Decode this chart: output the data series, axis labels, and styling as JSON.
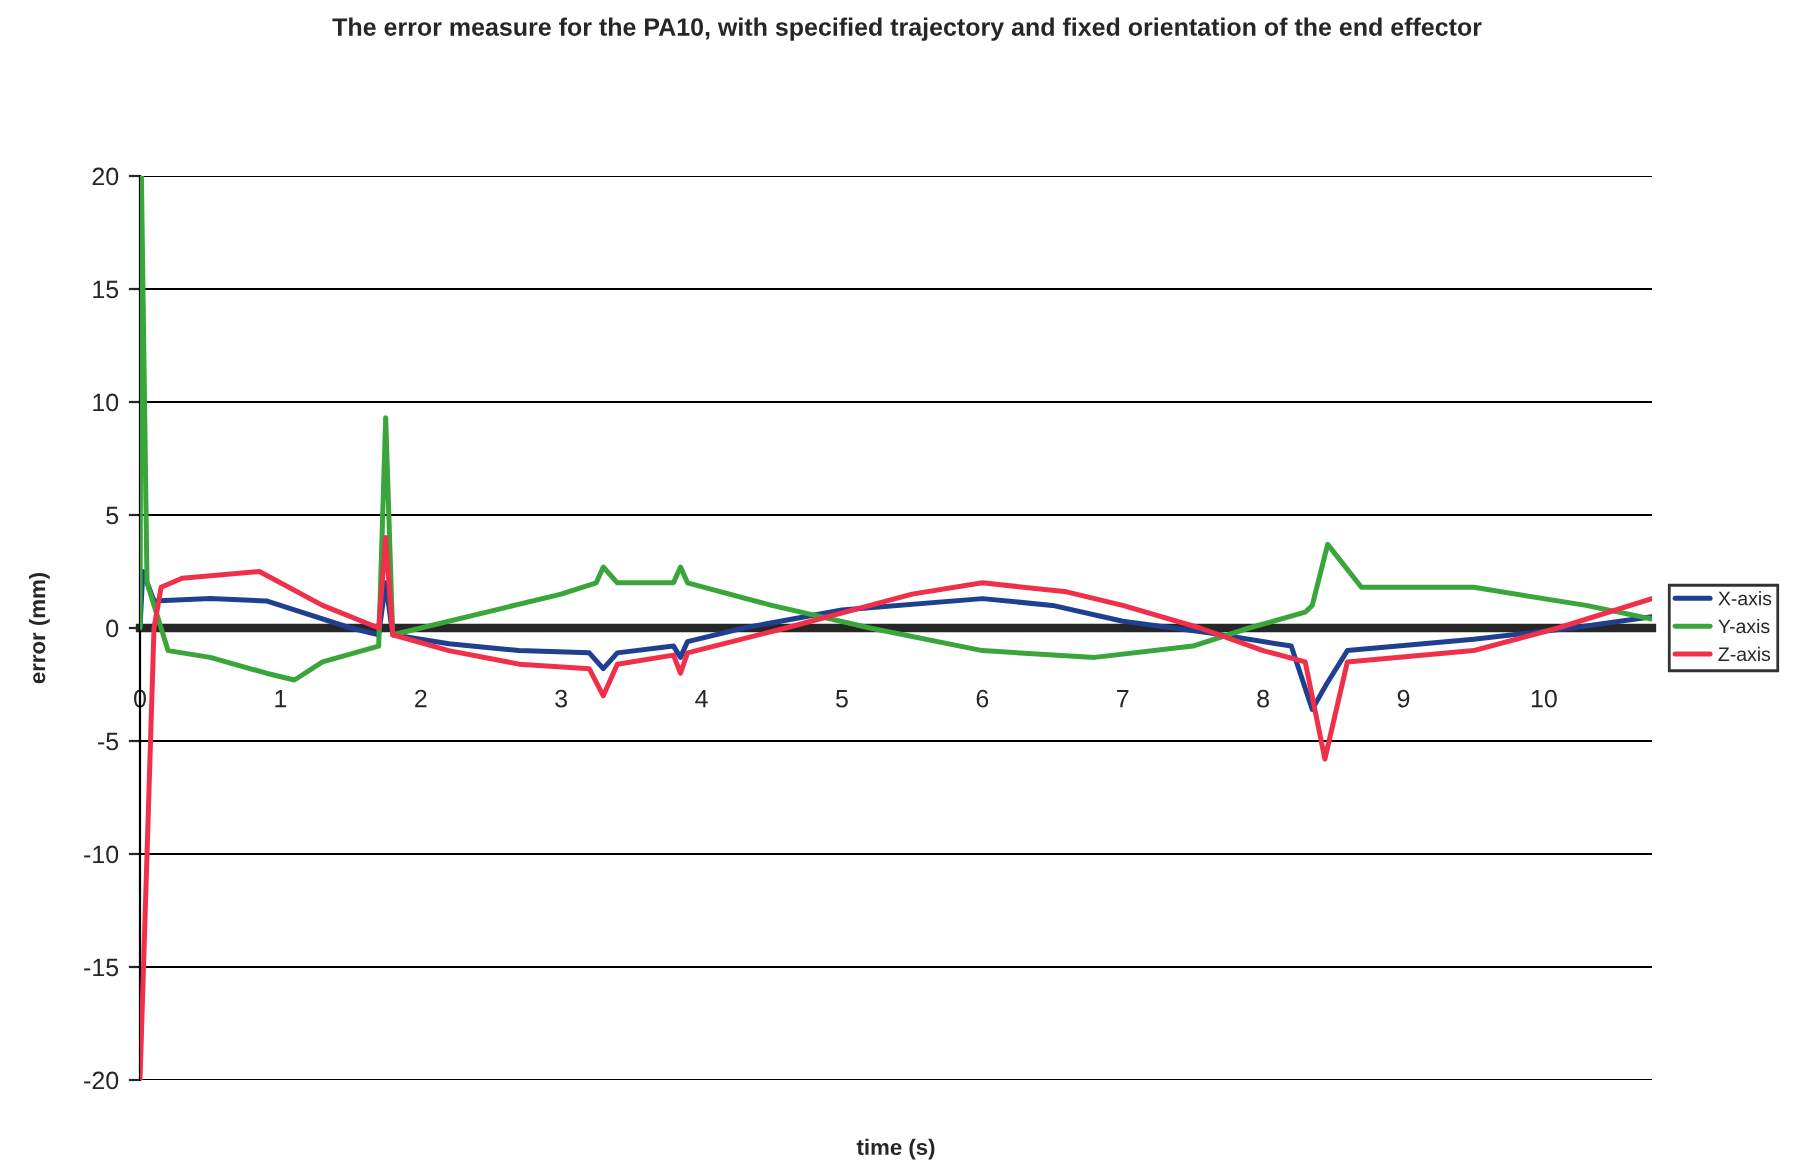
{
  "chart_data": {
    "type": "line",
    "title": "The error measure for the PA10, with specified trajectory and fixed orientation of the end effector",
    "xlabel": "time (s)",
    "ylabel": "error (mm)",
    "xlim": [
      0,
      10.77
    ],
    "xticks": [
      0,
      1,
      2,
      3,
      4,
      5,
      6,
      7,
      8,
      9,
      10
    ],
    "ylim": [
      -20,
      20
    ],
    "yticks": [
      -20,
      -15,
      -10,
      -5,
      0,
      5,
      10,
      15,
      20
    ],
    "grid": "y",
    "legend": "right",
    "series": [
      {
        "name": "X-axis",
        "color": "#1f3f8f",
        "x": [
          0,
          0.02,
          0.1,
          0.5,
          0.9,
          1.2,
          1.5,
          1.7,
          1.75,
          1.8,
          2.2,
          2.7,
          3.2,
          3.3,
          3.4,
          3.8,
          3.85,
          3.9,
          4.3,
          5.0,
          6.0,
          6.5,
          7.0,
          7.6,
          8.2,
          8.35,
          8.45,
          8.6,
          9.5,
          10.2,
          10.77
        ],
        "values": [
          0,
          2.5,
          1.2,
          1.3,
          1.2,
          0.6,
          0,
          -0.3,
          2,
          -0.3,
          -0.7,
          -1.0,
          -1.1,
          -1.8,
          -1.1,
          -0.8,
          -1.3,
          -0.6,
          0,
          0.8,
          1.3,
          1.0,
          0.3,
          -0.2,
          -0.8,
          -3.6,
          -2.5,
          -1.0,
          -0.5,
          0,
          0.5
        ]
      },
      {
        "name": "Y-axis",
        "color": "#3aa53a",
        "x": [
          0,
          0.01,
          0.05,
          0.2,
          0.5,
          0.9,
          1.1,
          1.3,
          1.7,
          1.75,
          1.8,
          2.0,
          3.0,
          3.25,
          3.3,
          3.4,
          3.8,
          3.85,
          3.9,
          4.5,
          5.2,
          6.0,
          6.8,
          7.5,
          7.9,
          8.3,
          8.35,
          8.46,
          8.7,
          9.5,
          10.3,
          10.77
        ],
        "values": [
          0,
          20,
          2,
          -1,
          -1.3,
          -2.0,
          -2.3,
          -1.5,
          -0.8,
          9.3,
          -0.3,
          0,
          1.5,
          2.0,
          2.7,
          2.0,
          2.0,
          2.7,
          2.0,
          1.0,
          0,
          -1.0,
          -1.3,
          -0.8,
          0,
          0.7,
          1.0,
          3.7,
          1.8,
          1.8,
          1.0,
          0.4
        ]
      },
      {
        "name": "Z-axis",
        "color": "#f0304a",
        "x": [
          0,
          0.1,
          0.15,
          0.3,
          0.85,
          1.0,
          1.3,
          1.7,
          1.75,
          1.8,
          2.2,
          2.7,
          3.2,
          3.3,
          3.4,
          3.8,
          3.85,
          3.9,
          4.6,
          5.5,
          6.0,
          6.6,
          7.0,
          7.55,
          8.0,
          8.3,
          8.44,
          8.6,
          9.5,
          10.1,
          10.77
        ],
        "values": [
          -20,
          0,
          1.8,
          2.2,
          2.5,
          2.0,
          1.0,
          0,
          4,
          -0.3,
          -1.0,
          -1.6,
          -1.8,
          -3.0,
          -1.6,
          -1.2,
          -2.0,
          -1.1,
          0,
          1.5,
          2.0,
          1.6,
          1.0,
          0,
          -1.0,
          -1.5,
          -5.8,
          -1.5,
          -1.0,
          0,
          1.3
        ]
      }
    ]
  }
}
